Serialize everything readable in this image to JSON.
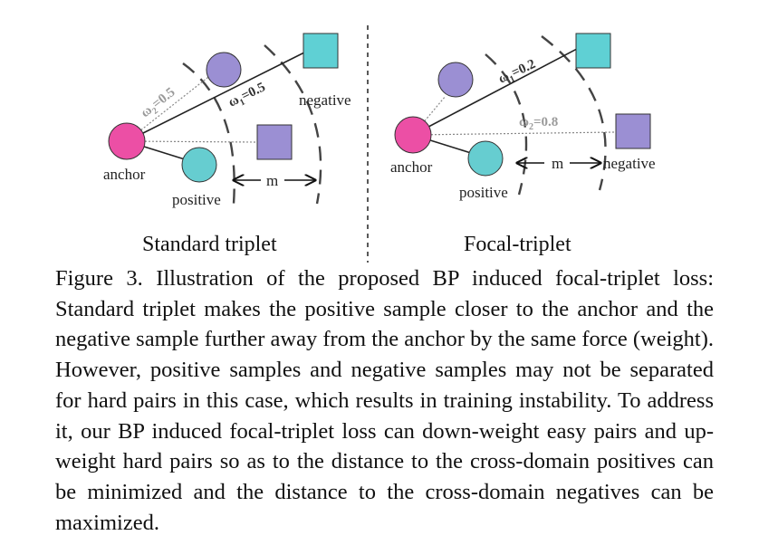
{
  "figure": {
    "standard": {
      "title": "Standard triplet",
      "anchor_label": "anchor",
      "positive_label": "positive",
      "negative_label": "negative",
      "margin_label": "m",
      "w1": {
        "symbol": "ω",
        "sub": "1",
        "value": "=0.5"
      },
      "w2": {
        "symbol": "ω",
        "sub": "2",
        "value": "=0.5"
      }
    },
    "focal": {
      "title": "Focal-triplet",
      "anchor_label": "anchor",
      "positive_label": "positive",
      "negative_label": "negative",
      "margin_label": "m",
      "w1": {
        "symbol": "ω",
        "sub": "1",
        "value": "=0.2"
      },
      "w2": {
        "symbol": "ω",
        "sub": "2",
        "value": "=0.8"
      }
    },
    "colors": {
      "anchor": "#ec4fa5",
      "positive": "#66cdd0",
      "negative": "#9b8fd3",
      "hard_negative": "#5fd0d4"
    }
  },
  "caption": "Figure 3. Illustration of the proposed BP induced focal-triplet loss: Standard triplet makes the positive sample closer to the anchor and the negative sample further away from the anchor by the same force (weight). However, positive samples and negative samples may not be separated for hard pairs in this case, which results in training instability. To address it, our BP induced focal-triplet loss can down-weight easy pairs and up-weight hard pairs so as to the distance to the cross-domain positives can be minimized and the distance to the cross-domain negatives can be maximized."
}
